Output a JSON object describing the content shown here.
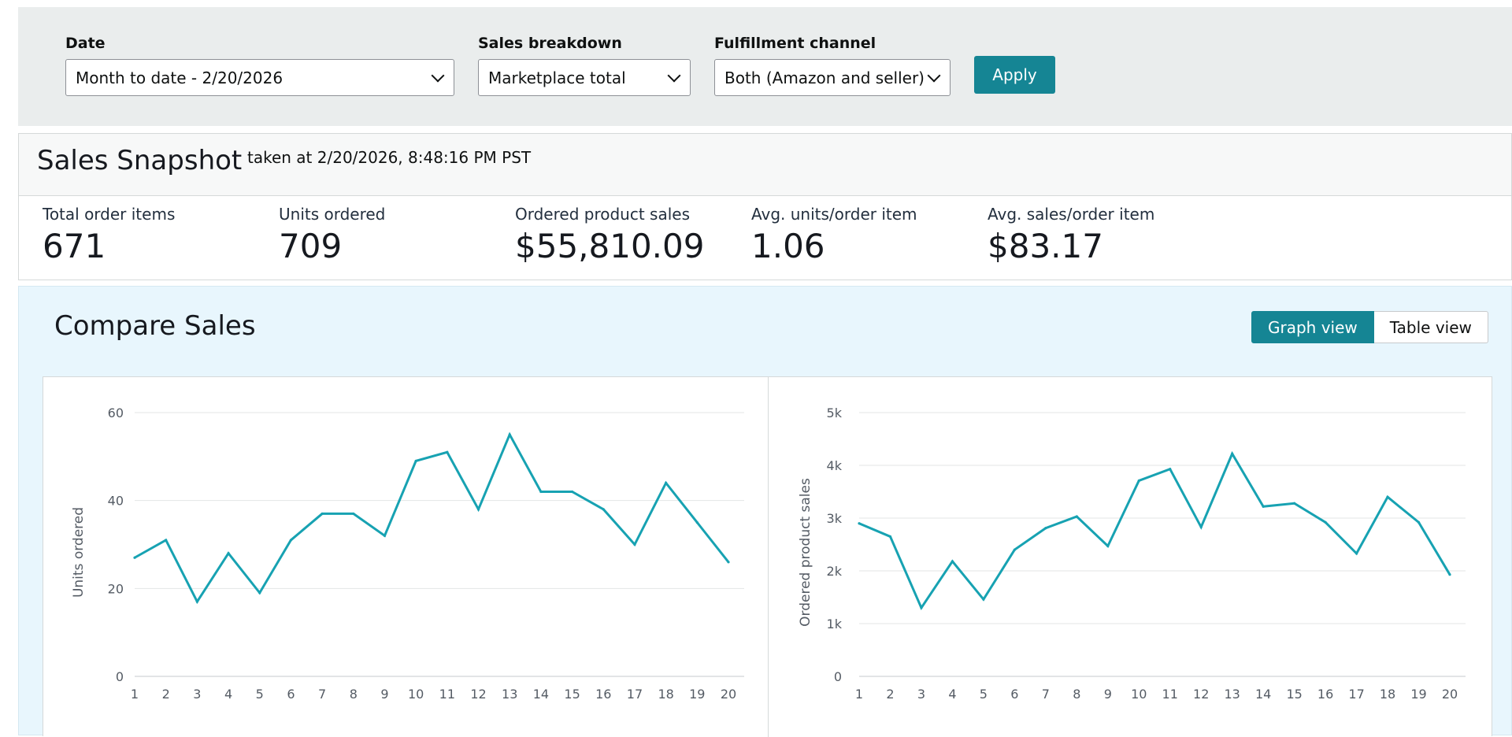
{
  "filters": {
    "date": {
      "label": "Date",
      "value": "Month to date - 2/20/2026"
    },
    "breakdown": {
      "label": "Sales breakdown",
      "value": "Marketplace total"
    },
    "channel": {
      "label": "Fulfillment channel",
      "value": "Both (Amazon and seller)"
    },
    "apply_label": "Apply"
  },
  "snapshot": {
    "title": "Sales Snapshot",
    "taken": "taken at 2/20/2026, 8:48:16 PM PST",
    "metrics": [
      {
        "label": "Total order items",
        "value": "671"
      },
      {
        "label": "Units ordered",
        "value": "709"
      },
      {
        "label": "Ordered product sales",
        "value": "$55,810.09"
      },
      {
        "label": "Avg. units/order item",
        "value": "1.06"
      },
      {
        "label": "Avg. sales/order item",
        "value": "$83.17"
      }
    ]
  },
  "compare": {
    "title": "Compare Sales",
    "graph_view_label": "Graph view",
    "table_view_label": "Table view"
  },
  "colors": {
    "accent": "#158594",
    "line": "#17a2b2"
  },
  "chart_data": [
    {
      "type": "line",
      "title": "",
      "xlabel": "",
      "ylabel": "Units ordered",
      "x": [
        1,
        2,
        3,
        4,
        5,
        6,
        7,
        8,
        9,
        10,
        11,
        12,
        13,
        14,
        15,
        16,
        17,
        18,
        19,
        20
      ],
      "values": [
        27,
        31,
        17,
        28,
        19,
        31,
        37,
        37,
        32,
        49,
        51,
        38,
        55,
        42,
        42,
        38,
        30,
        44,
        35,
        26
      ],
      "ylim": [
        0,
        60
      ],
      "yticks": [
        "0",
        "20",
        "40",
        "60"
      ],
      "grid": true
    },
    {
      "type": "line",
      "title": "",
      "xlabel": "",
      "ylabel": "Ordered product sales",
      "x": [
        1,
        2,
        3,
        4,
        5,
        6,
        7,
        8,
        9,
        10,
        11,
        12,
        13,
        14,
        15,
        16,
        17,
        18,
        19,
        20
      ],
      "values": [
        2900,
        2650,
        1300,
        2180,
        1460,
        2400,
        2810,
        3030,
        2470,
        3710,
        3930,
        2830,
        4220,
        3220,
        3280,
        2920,
        2330,
        3400,
        2920,
        1930
      ],
      "ylim": [
        0,
        5000
      ],
      "yticks": [
        "0",
        "1k",
        "2k",
        "3k",
        "4k",
        "5k"
      ],
      "grid": true
    }
  ]
}
